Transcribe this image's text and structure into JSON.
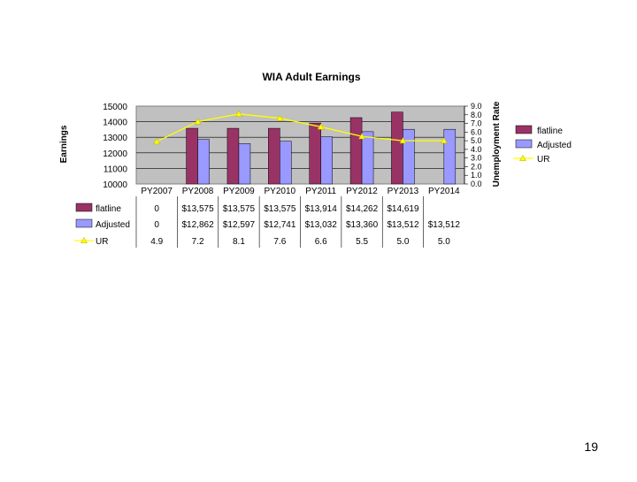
{
  "page_number": "19",
  "chart_data": {
    "type": "bar",
    "title": "WIA Adult Earnings",
    "ylabel": "Earnings",
    "y2label": "Unemployment Rate",
    "ylim": [
      10000,
      15000
    ],
    "yticks": [
      "15000",
      "14000",
      "13000",
      "12000",
      "11000",
      "10000"
    ],
    "y2lim": [
      0,
      9
    ],
    "y2ticks": [
      "9.0",
      "8.0",
      "7.0",
      "6.0",
      "5.0",
      "4.0",
      "3.0",
      "2.0",
      "1.0",
      "0.0"
    ],
    "categories": [
      "PY2007",
      "PY2008",
      "PY2009",
      "PY2010",
      "PY2011",
      "PY2012",
      "PY2013",
      "PY2014"
    ],
    "grid": true,
    "legend_position": "right",
    "plot_background": "#c0c0c0",
    "series": [
      {
        "name": "flatline",
        "kind": "bar",
        "color": "#993366",
        "values": [
          0,
          13575,
          13575,
          13575,
          13914,
          14262,
          14619,
          null
        ],
        "labels": [
          "0",
          "$13,575",
          "$13,575",
          "$13,575",
          "$13,914",
          "$14,262",
          "$14,619",
          ""
        ]
      },
      {
        "name": "Adjusted",
        "kind": "bar",
        "color": "#9999ff",
        "values": [
          0,
          12862,
          12597,
          12741,
          13032,
          13360,
          13512,
          13512
        ],
        "labels": [
          "0",
          "$12,862",
          "$12,597",
          "$12,741",
          "$13,032",
          "$13,360",
          "$13,512",
          "$13,512"
        ]
      },
      {
        "name": "UR",
        "kind": "line",
        "axis": "secondary",
        "color": "#ffff00",
        "values": [
          4.9,
          7.2,
          8.1,
          7.6,
          6.6,
          5.5,
          5.0,
          5.0
        ],
        "labels": [
          "4.9",
          "7.2",
          "8.1",
          "7.6",
          "6.6",
          "5.5",
          "5.0",
          "5.0"
        ]
      }
    ]
  }
}
